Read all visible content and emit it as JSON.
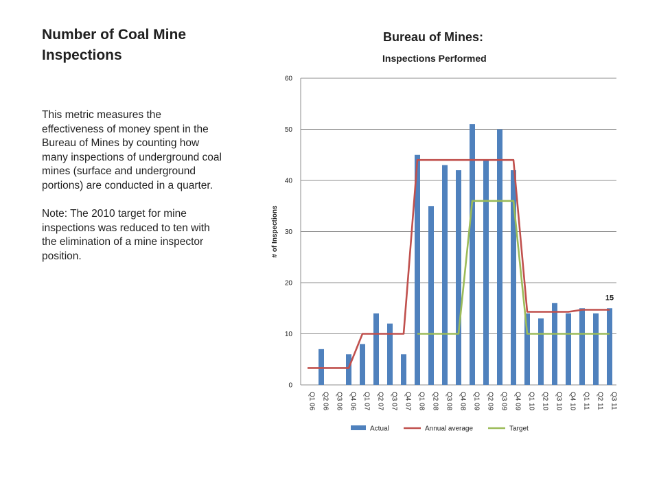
{
  "left": {
    "title": "Number of Coal Mine Inspections",
    "paragraph1": "This  metric measures  the effectiveness of money spent in the Bureau of Mines by counting how many inspections of underground coal mines (surface and underground portions) are conducted in a quarter.",
    "paragraph2": "Note:  The 2010 target for mine inspections was reduced to ten with the elimination of a mine inspector position."
  },
  "chart_data": {
    "type": "bar",
    "title": "Bureau of Mines:",
    "subtitle": "Inspections Performed",
    "ylabel": "# of Inspections",
    "xlabel": "",
    "ylim": [
      0,
      60
    ],
    "yticks": [
      0,
      10,
      20,
      30,
      40,
      50,
      60
    ],
    "grid": true,
    "legend_position": "bottom",
    "categories": [
      "Q1 06",
      "Q2 06",
      "Q3 06",
      "Q4 06",
      "Q1 07",
      "Q2 07",
      "Q3 07",
      "Q4 07",
      "Q1 08",
      "Q2 08",
      "Q3 08",
      "Q4 08",
      "Q1 09",
      "Q2 09",
      "Q3 09",
      "Q4 09",
      "Q1 10",
      "Q2 10",
      "Q3 10",
      "Q4 10",
      "Q1 11",
      "Q2 11",
      "Q3 11"
    ],
    "series": [
      {
        "name": "Actual",
        "kind": "bar",
        "color": "#4f81bd",
        "values": [
          null,
          7,
          null,
          6,
          8,
          14,
          12,
          6,
          45,
          35,
          43,
          42,
          51,
          44,
          50,
          42,
          14,
          13,
          16,
          14,
          15,
          14,
          15
        ]
      },
      {
        "name": "Annual average",
        "kind": "line",
        "color": "#c0504d",
        "values": [
          3.3,
          3.3,
          3.3,
          3.3,
          10,
          10,
          10,
          10,
          44,
          44,
          44,
          44,
          44,
          44,
          44,
          44,
          14.3,
          14.3,
          14.3,
          14.3,
          14.7,
          14.7,
          14.7
        ]
      },
      {
        "name": "Target",
        "kind": "line",
        "color": "#9bbb59",
        "values": [
          null,
          null,
          null,
          null,
          null,
          null,
          null,
          null,
          10,
          10,
          10,
          10,
          36,
          36,
          36,
          36,
          10,
          10,
          10,
          10,
          10,
          10,
          10
        ]
      }
    ],
    "annotations": [
      {
        "category": "Q3 11",
        "text": "15"
      }
    ]
  }
}
